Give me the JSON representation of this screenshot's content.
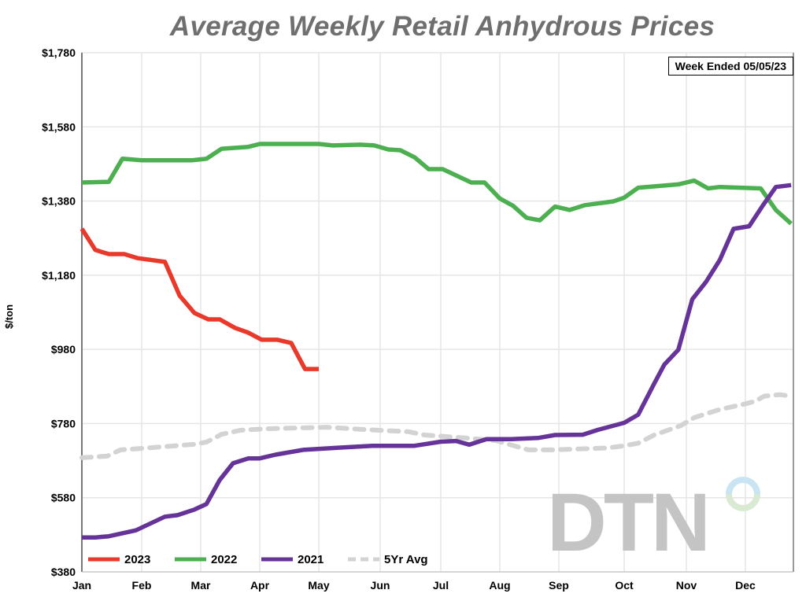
{
  "chart_data": {
    "type": "line",
    "title": "Average Weekly Retail Anhydrous Prices",
    "subtitle": "Week Ended 05/05/23",
    "xlabel": "",
    "ylabel": "$/ton",
    "ylim": [
      380,
      1780
    ],
    "yticks": [
      "$380",
      "$580",
      "$780",
      "$980",
      "$1,180",
      "$1,380",
      "$1,580",
      "$1,780"
    ],
    "ytick_values": [
      380,
      580,
      780,
      980,
      1180,
      1380,
      1580,
      1780
    ],
    "xticks": [
      "Jan",
      "Feb",
      "Mar",
      "Apr",
      "May",
      "Jun",
      "Jul",
      "Aug",
      "Sep",
      "Oct",
      "Nov",
      "Dec"
    ],
    "grid": true,
    "legend_position": "bottom-left",
    "watermark": "DTN",
    "series": [
      {
        "name": "2023",
        "color": "#e8392b",
        "dashed": false,
        "points": [
          [
            "01-01",
            1305
          ],
          [
            "01-08",
            1248
          ],
          [
            "01-15",
            1237
          ],
          [
            "01-23",
            1237
          ],
          [
            "01-30",
            1226
          ],
          [
            "02-12",
            1216
          ],
          [
            "02-19",
            1125
          ],
          [
            "02-26",
            1078
          ],
          [
            "03-05",
            1061
          ],
          [
            "03-11",
            1061
          ],
          [
            "03-19",
            1038
          ],
          [
            "03-26",
            1025
          ],
          [
            "04-02",
            1006
          ],
          [
            "04-10",
            1006
          ],
          [
            "04-17",
            997
          ],
          [
            "04-24",
            927
          ],
          [
            "05-01",
            927
          ]
        ]
      },
      {
        "name": "2022",
        "color": "#4caf50",
        "dashed": false,
        "points": [
          [
            "01-01",
            1430
          ],
          [
            "01-15",
            1432
          ],
          [
            "01-22",
            1494
          ],
          [
            "02-01",
            1490
          ],
          [
            "02-25",
            1490
          ],
          [
            "03-04",
            1494
          ],
          [
            "03-12",
            1521
          ],
          [
            "03-26",
            1526
          ],
          [
            "04-01",
            1534
          ],
          [
            "05-01",
            1534
          ],
          [
            "05-08",
            1530
          ],
          [
            "05-22",
            1532
          ],
          [
            "05-29",
            1530
          ],
          [
            "06-05",
            1519
          ],
          [
            "06-11",
            1517
          ],
          [
            "06-18",
            1498
          ],
          [
            "06-25",
            1466
          ],
          [
            "07-02",
            1466
          ],
          [
            "07-17",
            1430
          ],
          [
            "07-24",
            1430
          ],
          [
            "08-01",
            1387
          ],
          [
            "08-08",
            1367
          ],
          [
            "08-15",
            1335
          ],
          [
            "08-22",
            1328
          ],
          [
            "08-30",
            1365
          ],
          [
            "09-06",
            1356
          ],
          [
            "09-13",
            1369
          ],
          [
            "09-26",
            1379
          ],
          [
            "10-01",
            1389
          ],
          [
            "10-08",
            1416
          ],
          [
            "10-28",
            1425
          ],
          [
            "11-05",
            1435
          ],
          [
            "11-12",
            1414
          ],
          [
            "11-18",
            1418
          ],
          [
            "12-09",
            1414
          ],
          [
            "12-17",
            1356
          ],
          [
            "12-25",
            1319
          ]
        ]
      },
      {
        "name": "2021",
        "color": "#663399",
        "dashed": false,
        "points": [
          [
            "01-01",
            473
          ],
          [
            "01-08",
            473
          ],
          [
            "01-15",
            476
          ],
          [
            "01-29",
            492
          ],
          [
            "02-12",
            529
          ],
          [
            "02-18",
            533
          ],
          [
            "02-26",
            548
          ],
          [
            "03-04",
            563
          ],
          [
            "03-11",
            628
          ],
          [
            "03-18",
            673
          ],
          [
            "03-26",
            686
          ],
          [
            "04-01",
            686
          ],
          [
            "04-09",
            696
          ],
          [
            "04-23",
            709
          ],
          [
            "05-11",
            715
          ],
          [
            "05-28",
            720
          ],
          [
            "06-18",
            720
          ],
          [
            "07-01",
            731
          ],
          [
            "07-09",
            733
          ],
          [
            "07-16",
            723
          ],
          [
            "07-25",
            738
          ],
          [
            "08-07",
            738
          ],
          [
            "08-21",
            741
          ],
          [
            "08-30",
            749
          ],
          [
            "09-12",
            750
          ],
          [
            "09-19",
            763
          ],
          [
            "10-01",
            782
          ],
          [
            "10-08",
            804
          ],
          [
            "10-16",
            888
          ],
          [
            "10-21",
            939
          ],
          [
            "10-28",
            979
          ],
          [
            "11-04",
            1115
          ],
          [
            "11-11",
            1162
          ],
          [
            "11-18",
            1221
          ],
          [
            "11-25",
            1305
          ],
          [
            "12-03",
            1312
          ],
          [
            "12-10",
            1367
          ],
          [
            "12-17",
            1418
          ],
          [
            "12-25",
            1423
          ]
        ]
      },
      {
        "name": "5Yr Avg",
        "color": "#d3d3d3",
        "dashed": true,
        "points": [
          [
            "01-01",
            688
          ],
          [
            "01-14",
            692
          ],
          [
            "01-21",
            709
          ],
          [
            "02-01",
            713
          ],
          [
            "02-26",
            724
          ],
          [
            "03-04",
            730
          ],
          [
            "03-12",
            751
          ],
          [
            "03-22",
            762
          ],
          [
            "04-05",
            766
          ],
          [
            "05-05",
            770
          ],
          [
            "05-24",
            764
          ],
          [
            "06-15",
            758
          ],
          [
            "06-23",
            749
          ],
          [
            "07-14",
            741
          ],
          [
            "07-30",
            734
          ],
          [
            "08-16",
            709
          ],
          [
            "08-28",
            709
          ],
          [
            "09-23",
            714
          ],
          [
            "10-01",
            720
          ],
          [
            "10-08",
            727
          ],
          [
            "10-16",
            749
          ],
          [
            "10-29",
            774
          ],
          [
            "11-05",
            796
          ],
          [
            "11-18",
            818
          ],
          [
            "12-01",
            833
          ],
          [
            "12-06",
            840
          ],
          [
            "12-11",
            854
          ],
          [
            "12-19",
            858
          ],
          [
            "12-25",
            854
          ]
        ]
      }
    ]
  }
}
